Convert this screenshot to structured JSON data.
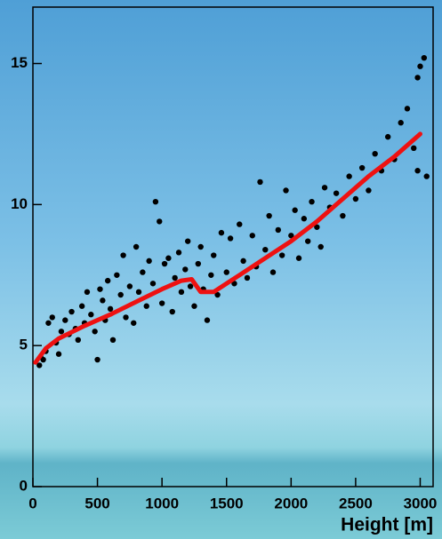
{
  "chart_data": {
    "type": "scatter",
    "x_label": "Height [m]",
    "xlim": [
      0,
      3100
    ],
    "ylim": [
      0,
      17
    ],
    "xticks": [
      0,
      500,
      1000,
      1500,
      2000,
      2500,
      3000
    ],
    "yticks": [
      0,
      5,
      10,
      15
    ],
    "series": [
      {
        "type": "scatter",
        "color": "#000000",
        "x": [
          50,
          60,
          80,
          100,
          120,
          150,
          180,
          200,
          220,
          250,
          280,
          300,
          330,
          350,
          380,
          400,
          420,
          450,
          480,
          500,
          520,
          540,
          560,
          580,
          600,
          620,
          650,
          680,
          700,
          720,
          750,
          780,
          800,
          820,
          850,
          880,
          900,
          930,
          950,
          980,
          1000,
          1020,
          1050,
          1080,
          1100,
          1130,
          1150,
          1180,
          1200,
          1220,
          1250,
          1280,
          1300,
          1320,
          1350,
          1380,
          1400,
          1430,
          1460,
          1500,
          1530,
          1560,
          1600,
          1630,
          1660,
          1700,
          1730,
          1760,
          1800,
          1830,
          1860,
          1900,
          1930,
          1960,
          2000,
          2030,
          2060,
          2100,
          2130,
          2160,
          2200,
          2230,
          2260,
          2300,
          2350,
          2400,
          2450,
          2500,
          2550,
          2600,
          2650,
          2700,
          2750,
          2800,
          2850,
          2900,
          2950,
          2980,
          3000,
          3030,
          3050,
          2980
        ],
        "values": [
          4.3,
          4.6,
          4.5,
          4.8,
          5.8,
          6.0,
          5.1,
          4.7,
          5.5,
          5.9,
          5.4,
          6.2,
          5.6,
          5.2,
          6.4,
          5.8,
          6.9,
          6.1,
          5.5,
          4.5,
          7.0,
          6.6,
          5.9,
          7.3,
          6.3,
          5.2,
          7.5,
          6.8,
          8.2,
          6.0,
          7.1,
          5.8,
          8.5,
          6.9,
          7.6,
          6.4,
          8.0,
          7.2,
          10.1,
          9.4,
          6.5,
          7.9,
          8.1,
          6.2,
          7.4,
          8.3,
          6.9,
          7.7,
          8.7,
          7.1,
          6.4,
          7.9,
          8.5,
          7.0,
          5.9,
          7.5,
          8.2,
          6.8,
          9.0,
          7.6,
          8.8,
          7.2,
          9.3,
          8.0,
          7.4,
          8.9,
          7.8,
          10.8,
          8.4,
          9.6,
          7.6,
          9.1,
          8.2,
          10.5,
          8.9,
          9.8,
          8.1,
          9.5,
          8.7,
          10.1,
          9.2,
          8.5,
          10.6,
          9.9,
          10.4,
          9.6,
          11.0,
          10.2,
          11.3,
          10.5,
          11.8,
          11.2,
          12.4,
          11.6,
          12.9,
          13.4,
          12.0,
          14.5,
          14.9,
          15.2,
          11.0,
          11.2
        ]
      },
      {
        "type": "line",
        "color": "#ee1111",
        "x": [
          20,
          100,
          200,
          400,
          600,
          800,
          1000,
          1150,
          1230,
          1300,
          1400,
          1600,
          1800,
          2000,
          2200,
          2400,
          2600,
          2800,
          3000
        ],
        "values": [
          4.4,
          4.9,
          5.25,
          5.7,
          6.1,
          6.55,
          7.0,
          7.3,
          7.35,
          6.9,
          6.9,
          7.5,
          8.1,
          8.7,
          9.4,
          10.2,
          11.0,
          11.7,
          12.5
        ]
      }
    ]
  }
}
